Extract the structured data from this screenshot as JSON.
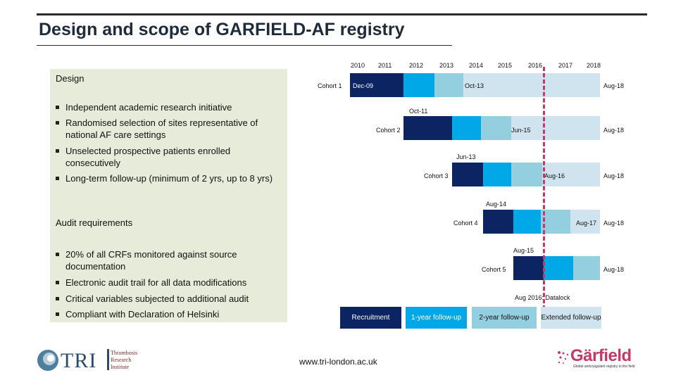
{
  "title": "Design and scope of GARFIELD-AF registry",
  "design": {
    "heading": "Design",
    "bullets": [
      "Independent academic research initiative",
      "Randomised selection of sites representative of national AF care settings",
      "Unselected prospective patients enrolled consecutively",
      "Long-term follow-up (minimum of 2 yrs, up to 8 yrs)"
    ]
  },
  "audit": {
    "heading": "Audit requirements",
    "bullets": [
      "20% of all CRFs monitored against source documentation",
      "Electronic audit trail for all data modifications",
      "Critical variables subjected to additional audit",
      "Compliant with Declaration of Helsinki"
    ]
  },
  "timeline": {
    "years": [
      "2010",
      "2011",
      "2012",
      "2013",
      "2014",
      "2015",
      "2016",
      "2017",
      "2018"
    ],
    "cohorts": [
      {
        "name": "Cohort 1",
        "start": "Dec-09",
        "mid": "Oct-13",
        "end": "Aug-18"
      },
      {
        "name": "Cohort 2",
        "start": "Oct-11",
        "mid": "Jun-15",
        "end": "Aug-18"
      },
      {
        "name": "Cohort 3",
        "start": "Jun-13",
        "mid": "Aug-16",
        "end": "Aug-18"
      },
      {
        "name": "Cohort 4",
        "start": "Aug-14",
        "mid": "Aug-17",
        "end": "Aug-18"
      },
      {
        "name": "Cohort 5",
        "start": "Aug-15",
        "end": "Aug-18"
      }
    ],
    "datalock": "Aug 2016: Datalock"
  },
  "legend": {
    "recruitment": "Recruitment",
    "fu1": "1-year follow-up",
    "fu2": "2-year follow-up",
    "extended": "Extended follow-up"
  },
  "footer": {
    "tri_initials": "TRI",
    "tri_line1": "Thrombosis",
    "tri_line2": "Research",
    "tri_line3": "Institute",
    "url": "www.tri-london.ac.uk",
    "garfield_word": "Gärfield",
    "garfield_tagline": "Global anticoagulant registry in the field"
  },
  "colors": {
    "recruitment": "#0c2461",
    "fu1": "#00a8e8",
    "fu2": "#94cfe0",
    "extended": "#cfe4ee",
    "datalock": "#c23a66",
    "panel": "#e6ecd9"
  }
}
